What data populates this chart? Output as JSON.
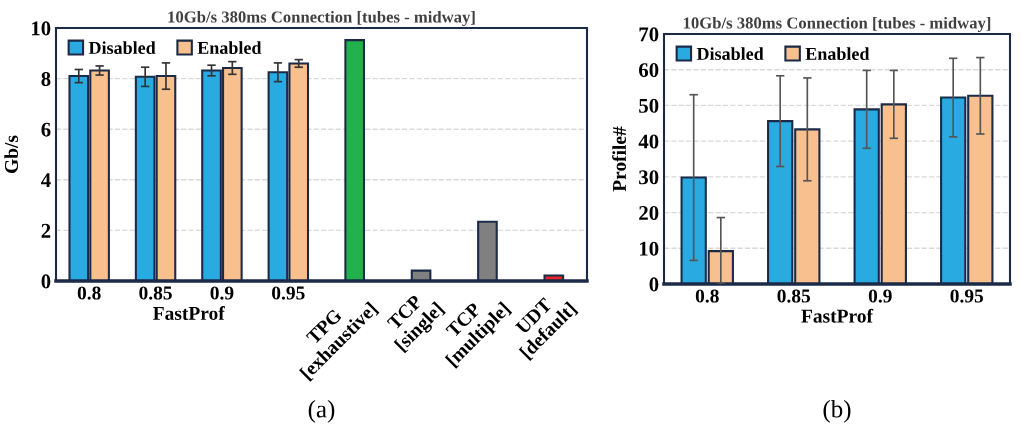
{
  "chart_data": [
    {
      "type": "bar",
      "title": "10Gb/s 380ms Connection [tubes - midway]",
      "xlabel": "FastProf",
      "ylabel": "Gb/s",
      "categories": [
        "0.8",
        "0.85",
        "0.9",
        "0.95",
        "TPG\n[exhaustive]",
        "TCP\n[single]",
        "TCP\n[multiple]",
        "UDT\n[default]"
      ],
      "series": [
        {
          "name": "Disabled",
          "color": "#29abe2",
          "values": [
            8.1,
            8.07,
            8.32,
            8.25,
            null,
            null,
            null,
            null
          ],
          "errors": [
            0.26,
            0.38,
            0.21,
            0.37,
            null,
            null,
            null,
            null
          ]
        },
        {
          "name": "Enabled",
          "color": "#f8bf8f",
          "values": [
            8.32,
            8.1,
            8.42,
            8.6,
            null,
            null,
            null,
            null
          ],
          "errors": [
            0.18,
            0.52,
            0.25,
            0.15,
            null,
            null,
            null,
            null
          ]
        },
        {
          "colors": [
            null,
            null,
            null,
            null,
            "#22b14c",
            "#808080",
            "#808080",
            "#e8242a"
          ],
          "values": [
            null,
            null,
            null,
            null,
            9.52,
            0.41,
            2.34,
            0.22
          ]
        }
      ],
      "ylim": [
        0,
        10
      ],
      "yticks": [
        0,
        2,
        4,
        6,
        8,
        10
      ],
      "grid": "y",
      "legend": "top left",
      "annotations": [
        "(a)"
      ]
    },
    {
      "type": "bar",
      "title": "10Gb/s 380ms Connection [tubes - midway]",
      "xlabel": "FastProf",
      "ylabel": "Profile#",
      "categories": [
        "0.8",
        "0.85",
        "0.9",
        "0.95"
      ],
      "series": [
        {
          "name": "Disabled",
          "color": "#29abe2",
          "values": [
            29.8,
            45.6,
            48.9,
            52.2
          ],
          "errors": [
            23.2,
            12.7,
            10.9,
            11.0
          ]
        },
        {
          "name": "Enabled",
          "color": "#f8bf8f",
          "values": [
            9.2,
            43.3,
            50.3,
            52.7
          ],
          "errors": [
            [
              0,
              18.6
            ],
            14.4,
            9.5,
            10.7
          ]
        }
      ],
      "ylim": [
        0,
        70
      ],
      "yticks": [
        0,
        10,
        20,
        30,
        40,
        50,
        60,
        70
      ],
      "grid": "y",
      "legend": "top left",
      "annotations": [
        "(b)"
      ]
    }
  ]
}
